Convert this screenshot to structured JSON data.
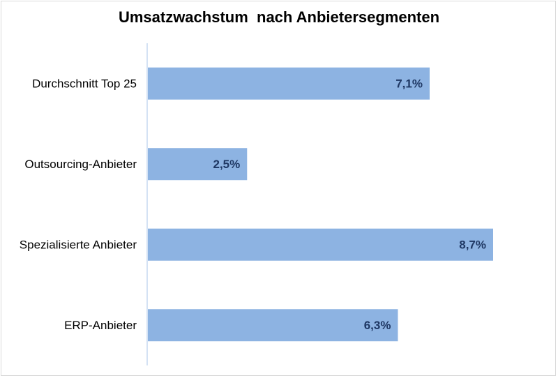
{
  "chart_data": {
    "type": "bar",
    "orientation": "horizontal",
    "title": "Umsatzwachstum  nach Anbietersegmenten",
    "categories": [
      "Durchschnitt Top 25",
      "Outsourcing-Anbieter",
      "Spezialisierte Anbieter",
      "ERP-Anbieter"
    ],
    "values": [
      7.1,
      2.5,
      8.7,
      6.3
    ],
    "data_labels": [
      "7,1%",
      "2,5%",
      "8,7%",
      "6,3%"
    ],
    "xlim": [
      0,
      8.7
    ],
    "grid": false,
    "bar_color": "#8DB3E2",
    "label_color": "#1F3864",
    "axis_color": "#C6D9F1"
  }
}
